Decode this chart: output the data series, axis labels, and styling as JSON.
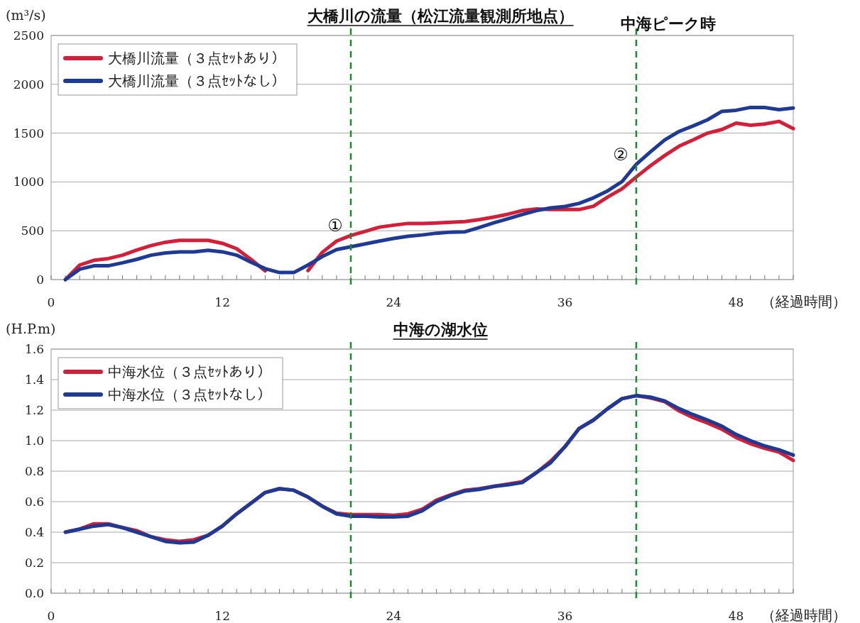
{
  "chart_data": [
    {
      "type": "line",
      "title": "大橋川の流量（松江流量観測所地点）",
      "ylabel": "(m³/s)",
      "xlabel": "（経過時間）",
      "x": [
        1,
        2,
        3,
        4,
        5,
        6,
        7,
        8,
        9,
        10,
        11,
        12,
        13,
        14,
        15,
        16,
        17,
        18,
        19,
        20,
        21,
        22,
        23,
        24,
        25,
        26,
        27,
        28,
        29,
        30,
        31,
        32,
        33,
        34,
        35,
        36,
        37,
        38,
        39,
        40,
        41,
        42,
        43,
        44,
        45,
        46,
        47,
        48,
        49,
        50,
        51,
        52
      ],
      "series": [
        {
          "name": "大橋川流量（３点ｾｯﾄあり）",
          "color": "#d0203a",
          "values": [
            0,
            149,
            198,
            215,
            250,
            302,
            348,
            382,
            402,
            402,
            402,
            371,
            316,
            207,
            89,
            null,
            null,
            92,
            279,
            394,
            451,
            494,
            537,
            557,
            575,
            575,
            580,
            586,
            594,
            614,
            640,
            669,
            706,
            723,
            717,
            717,
            717,
            751,
            846,
            929,
            1051,
            1166,
            1271,
            1366,
            1431,
            1500,
            1537,
            1603,
            1580,
            1594,
            1620,
            1546
          ]
        },
        {
          "name": "大橋川流量（３点ｾｯﾄなし）",
          "color": "#1f3a93",
          "values": [
            0,
            106,
            141,
            141,
            172,
            207,
            250,
            273,
            284,
            284,
            299,
            284,
            250,
            178,
            112,
            72,
            72,
            149,
            236,
            307,
            336,
            365,
            394,
            422,
            443,
            457,
            475,
            486,
            489,
            534,
            580,
            623,
            666,
            706,
            734,
            749,
            780,
            837,
            909,
            1003,
            1180,
            1309,
            1431,
            1517,
            1574,
            1637,
            1723,
            1734,
            1763,
            1763,
            1740,
            1757
          ]
        }
      ],
      "xlim": [
        0,
        52
      ],
      "ylim": [
        0,
        2500
      ],
      "yticks": [
        0,
        500,
        1000,
        1500,
        2000,
        2500
      ],
      "xticks": [
        0,
        {
          "value": 1,
          "label": null
        },
        {
          "value": 2,
          "label": null
        },
        {
          "value": 3,
          "label": null
        },
        {
          "value": 4,
          "label": null
        },
        {
          "value": 5,
          "label": null
        },
        {
          "value": 6,
          "label": null
        },
        {
          "value": 7,
          "label": null
        },
        {
          "value": 8,
          "label": null
        },
        {
          "value": 9,
          "label": null
        },
        {
          "value": 10,
          "label": null
        },
        {
          "value": 11,
          "label": null
        },
        12,
        {
          "value": 13,
          "label": null
        },
        {
          "value": 14,
          "label": null
        },
        {
          "value": 15,
          "label": null
        },
        {
          "value": 16,
          "label": null
        },
        {
          "value": 17,
          "label": null
        },
        {
          "value": 18,
          "label": null
        },
        {
          "value": 19,
          "label": null
        },
        {
          "value": 20,
          "label": null
        },
        {
          "value": 21,
          "label": null
        },
        {
          "value": 22,
          "label": null
        },
        {
          "value": 23,
          "label": null
        },
        24,
        {
          "value": 25,
          "label": null
        },
        {
          "value": 26,
          "label": null
        },
        {
          "value": 27,
          "label": null
        },
        {
          "value": 28,
          "label": null
        },
        {
          "value": 29,
          "label": null
        },
        {
          "value": 30,
          "label": null
        },
        {
          "value": 31,
          "label": null
        },
        {
          "value": 32,
          "label": null
        },
        {
          "value": 33,
          "label": null
        },
        {
          "value": 34,
          "label": null
        },
        {
          "value": 35,
          "label": null
        },
        36,
        {
          "value": 37,
          "label": null
        },
        {
          "value": 38,
          "label": null
        },
        {
          "value": 39,
          "label": null
        },
        {
          "value": 40,
          "label": null
        },
        {
          "value": 41,
          "label": null
        },
        {
          "value": 42,
          "label": null
        },
        {
          "value": 43,
          "label": null
        },
        {
          "value": 44,
          "label": null
        },
        {
          "value": 45,
          "label": null
        },
        {
          "value": 46,
          "label": null
        },
        {
          "value": 47,
          "label": null
        },
        48,
        {
          "value": 49,
          "label": null
        },
        {
          "value": 50,
          "label": null
        },
        {
          "value": 51,
          "label": null
        },
        {
          "value": 52,
          "label": null
        }
      ],
      "ref_lines": [
        {
          "axis": "x",
          "value": 21,
          "color": "#1a8a2a",
          "line_style": "dashed"
        },
        {
          "axis": "x",
          "value": 41,
          "color": "#1a8a2a",
          "line_style": "dashed",
          "label": "中海ピーク時"
        }
      ],
      "annotations": [
        {
          "text": "①",
          "x": 21,
          "y": 451
        },
        {
          "text": "②",
          "x": 41,
          "y": 1180
        }
      ],
      "grid": "y",
      "legend": "top left"
    },
    {
      "type": "line",
      "title": "中海の湖水位",
      "ylabel": "(H.P.m)",
      "xlabel": "（経過時間）",
      "x": [
        1,
        2,
        3,
        4,
        5,
        6,
        7,
        8,
        9,
        10,
        11,
        12,
        13,
        14,
        15,
        16,
        17,
        18,
        19,
        20,
        21,
        22,
        23,
        24,
        25,
        26,
        27,
        28,
        29,
        30,
        31,
        32,
        33,
        34,
        35,
        36,
        37,
        38,
        39,
        40,
        41,
        42,
        43,
        44,
        45,
        46,
        47,
        48,
        49,
        50,
        51,
        52
      ],
      "series": [
        {
          "name": "中海水位（３点ｾｯﾄあり）",
          "color": "#d0203a",
          "values": [
            0.4,
            0.42,
            0.455,
            0.455,
            0.43,
            0.41,
            0.37,
            0.35,
            0.34,
            0.35,
            0.38,
            0.44,
            0.52,
            0.59,
            0.66,
            0.685,
            0.675,
            0.63,
            0.57,
            0.525,
            0.515,
            0.515,
            0.515,
            0.51,
            0.52,
            0.55,
            0.61,
            0.645,
            0.675,
            0.685,
            0.7,
            0.715,
            0.73,
            0.79,
            0.865,
            0.96,
            1.08,
            1.135,
            1.21,
            1.275,
            1.295,
            1.28,
            1.255,
            1.195,
            1.15,
            1.115,
            1.075,
            1.02,
            0.98,
            0.95,
            0.925,
            0.87
          ]
        },
        {
          "name": "中海水位（３点ｾｯﾄなし）",
          "color": "#1f3a93",
          "values": [
            0.4,
            0.42,
            0.44,
            0.45,
            0.43,
            0.4,
            0.37,
            0.34,
            0.33,
            0.335,
            0.38,
            0.44,
            0.52,
            0.59,
            0.66,
            0.685,
            0.675,
            0.63,
            0.57,
            0.52,
            0.505,
            0.505,
            0.5,
            0.5,
            0.505,
            0.54,
            0.6,
            0.64,
            0.67,
            0.68,
            0.7,
            0.71,
            0.725,
            0.79,
            0.855,
            0.96,
            1.08,
            1.135,
            1.21,
            1.275,
            1.295,
            1.285,
            1.26,
            1.21,
            1.17,
            1.135,
            1.095,
            1.04,
            1.0,
            0.965,
            0.94,
            0.905
          ]
        }
      ],
      "xlim": [
        0,
        52
      ],
      "ylim": [
        0,
        1.6
      ],
      "yticks": [
        {
          "value": 0,
          "label": "0.0"
        },
        0.2,
        0.4,
        0.6,
        0.8,
        {
          "value": 1,
          "label": "1.0"
        },
        1.2,
        1.4,
        1.6
      ],
      "xticks": [
        0,
        {
          "value": 1,
          "label": null
        },
        {
          "value": 2,
          "label": null
        },
        {
          "value": 3,
          "label": null
        },
        {
          "value": 4,
          "label": null
        },
        {
          "value": 5,
          "label": null
        },
        {
          "value": 6,
          "label": null
        },
        {
          "value": 7,
          "label": null
        },
        {
          "value": 8,
          "label": null
        },
        {
          "value": 9,
          "label": null
        },
        {
          "value": 10,
          "label": null
        },
        {
          "value": 11,
          "label": null
        },
        12,
        {
          "value": 13,
          "label": null
        },
        {
          "value": 14,
          "label": null
        },
        {
          "value": 15,
          "label": null
        },
        {
          "value": 16,
          "label": null
        },
        {
          "value": 17,
          "label": null
        },
        {
          "value": 18,
          "label": null
        },
        {
          "value": 19,
          "label": null
        },
        {
          "value": 20,
          "label": null
        },
        {
          "value": 21,
          "label": null
        },
        {
          "value": 22,
          "label": null
        },
        {
          "value": 23,
          "label": null
        },
        24,
        {
          "value": 25,
          "label": null
        },
        {
          "value": 26,
          "label": null
        },
        {
          "value": 27,
          "label": null
        },
        {
          "value": 28,
          "label": null
        },
        {
          "value": 29,
          "label": null
        },
        {
          "value": 30,
          "label": null
        },
        {
          "value": 31,
          "label": null
        },
        {
          "value": 32,
          "label": null
        },
        {
          "value": 33,
          "label": null
        },
        {
          "value": 34,
          "label": null
        },
        {
          "value": 35,
          "label": null
        },
        36,
        {
          "value": 37,
          "label": null
        },
        {
          "value": 38,
          "label": null
        },
        {
          "value": 39,
          "label": null
        },
        {
          "value": 40,
          "label": null
        },
        {
          "value": 41,
          "label": null
        },
        {
          "value": 42,
          "label": null
        },
        {
          "value": 43,
          "label": null
        },
        {
          "value": 44,
          "label": null
        },
        {
          "value": 45,
          "label": null
        },
        {
          "value": 46,
          "label": null
        },
        {
          "value": 47,
          "label": null
        },
        48,
        {
          "value": 49,
          "label": null
        },
        {
          "value": 50,
          "label": null
        },
        {
          "value": 51,
          "label": null
        },
        {
          "value": 52,
          "label": null
        }
      ],
      "ref_lines": [
        {
          "axis": "x",
          "value": 21,
          "color": "#1a8a2a",
          "line_style": "dashed"
        },
        {
          "axis": "x",
          "value": 41,
          "color": "#1a8a2a",
          "line_style": "dashed"
        }
      ],
      "grid": "y",
      "legend": "top left"
    }
  ]
}
